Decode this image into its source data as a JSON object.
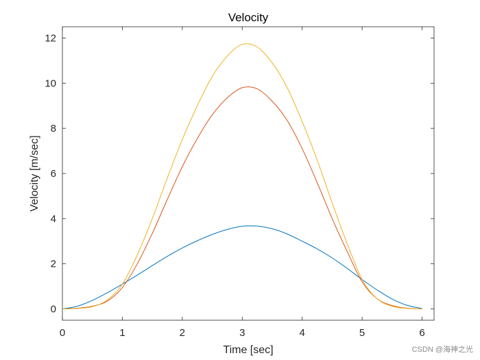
{
  "chart_data": {
    "type": "line",
    "title": "Velocity",
    "xlabel": "Time [sec]",
    "ylabel": "Velocity [m/sec]",
    "xlim": [
      0,
      6.2
    ],
    "ylim": [
      -0.5,
      12.5
    ],
    "xticks": [
      0,
      1,
      2,
      3,
      4,
      5,
      6
    ],
    "yticks": [
      0,
      2,
      4,
      6,
      8,
      10,
      12
    ],
    "grid": false,
    "legend": "none",
    "series": [
      {
        "color": "#0072BD",
        "x": [
          0,
          0.25,
          0.5,
          0.75,
          1,
          1.25,
          1.5,
          1.75,
          2,
          2.25,
          2.5,
          2.75,
          3,
          3.25,
          3.5,
          3.75,
          4,
          4.25,
          4.5,
          4.75,
          5,
          5.25,
          5.5,
          5.75,
          6
        ],
        "values": [
          0,
          0.12,
          0.38,
          0.72,
          1.1,
          1.5,
          1.92,
          2.33,
          2.7,
          3.02,
          3.3,
          3.52,
          3.66,
          3.67,
          3.55,
          3.32,
          3.0,
          2.66,
          2.26,
          1.8,
          1.3,
          0.84,
          0.44,
          0.16,
          0.02
        ]
      },
      {
        "color": "#D95319",
        "x": [
          0,
          0.25,
          0.5,
          0.75,
          1,
          1.25,
          1.5,
          1.75,
          2,
          2.25,
          2.5,
          2.75,
          3,
          3.25,
          3.5,
          3.75,
          4,
          4.25,
          4.5,
          4.75,
          5,
          5.25,
          5.5,
          5.75,
          6
        ],
        "values": [
          0,
          0.03,
          0.12,
          0.35,
          0.95,
          2.0,
          3.35,
          4.85,
          6.3,
          7.55,
          8.6,
          9.35,
          9.8,
          9.75,
          9.2,
          8.35,
          7.1,
          5.6,
          4.0,
          2.55,
          1.2,
          0.45,
          0.15,
          0.03,
          0.0
        ]
      },
      {
        "color": "#EDB120",
        "x": [
          0,
          0.25,
          0.5,
          0.75,
          1,
          1.25,
          1.5,
          1.75,
          2,
          2.25,
          2.5,
          2.75,
          3,
          3.25,
          3.5,
          3.75,
          4,
          4.25,
          4.5,
          4.75,
          5,
          5.25,
          5.5,
          5.75,
          6
        ],
        "values": [
          0,
          0.02,
          0.1,
          0.4,
          1.1,
          2.4,
          4.0,
          5.8,
          7.5,
          9.0,
          10.3,
          11.2,
          11.72,
          11.6,
          10.9,
          9.8,
          8.3,
          6.6,
          4.7,
          2.9,
          1.3,
          0.45,
          0.12,
          0.02,
          0.0
        ]
      }
    ]
  },
  "watermark": "CSDN @海神之光"
}
